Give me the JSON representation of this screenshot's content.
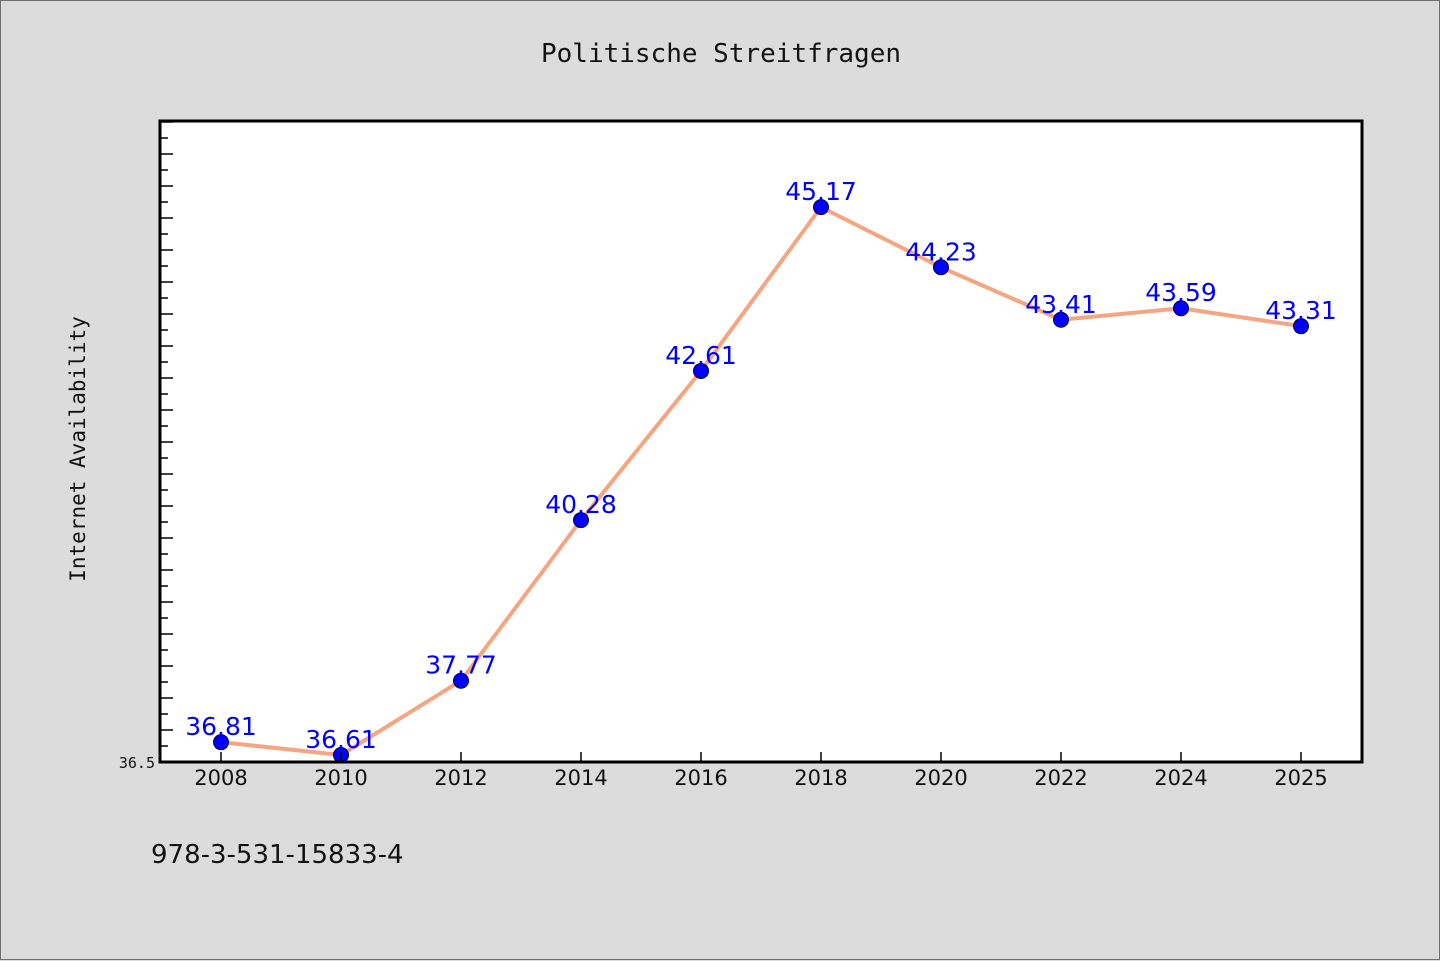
{
  "chart_data": {
    "type": "line",
    "title": "Politische Streitfragen",
    "xlabel": "",
    "ylabel": "Internet Availability",
    "categories": [
      "2008",
      "2010",
      "2012",
      "2014",
      "2016",
      "2018",
      "2020",
      "2022",
      "2024",
      "2025"
    ],
    "series": [
      {
        "values": [
          36.81,
          36.61,
          37.77,
          40.28,
          42.61,
          45.17,
          44.23,
          43.41,
          43.59,
          43.31
        ]
      }
    ],
    "data_labels": [
      "36.81",
      "36.61",
      "37.77",
      "40.28",
      "42.61",
      "45.17",
      "44.23",
      "43.41",
      "43.59",
      "43.31"
    ],
    "yticks_labeled": [
      "36.5"
    ],
    "ylim": [
      36.5,
      46.5
    ],
    "grid": false,
    "colors": {
      "line": "#f4a582",
      "marker": "#0000ff",
      "data_label": "#0000ff",
      "background": "#dcdcdc",
      "plot_area": "#ffffff"
    }
  },
  "footer": {
    "isbn": "978-3-531-15833-4"
  }
}
